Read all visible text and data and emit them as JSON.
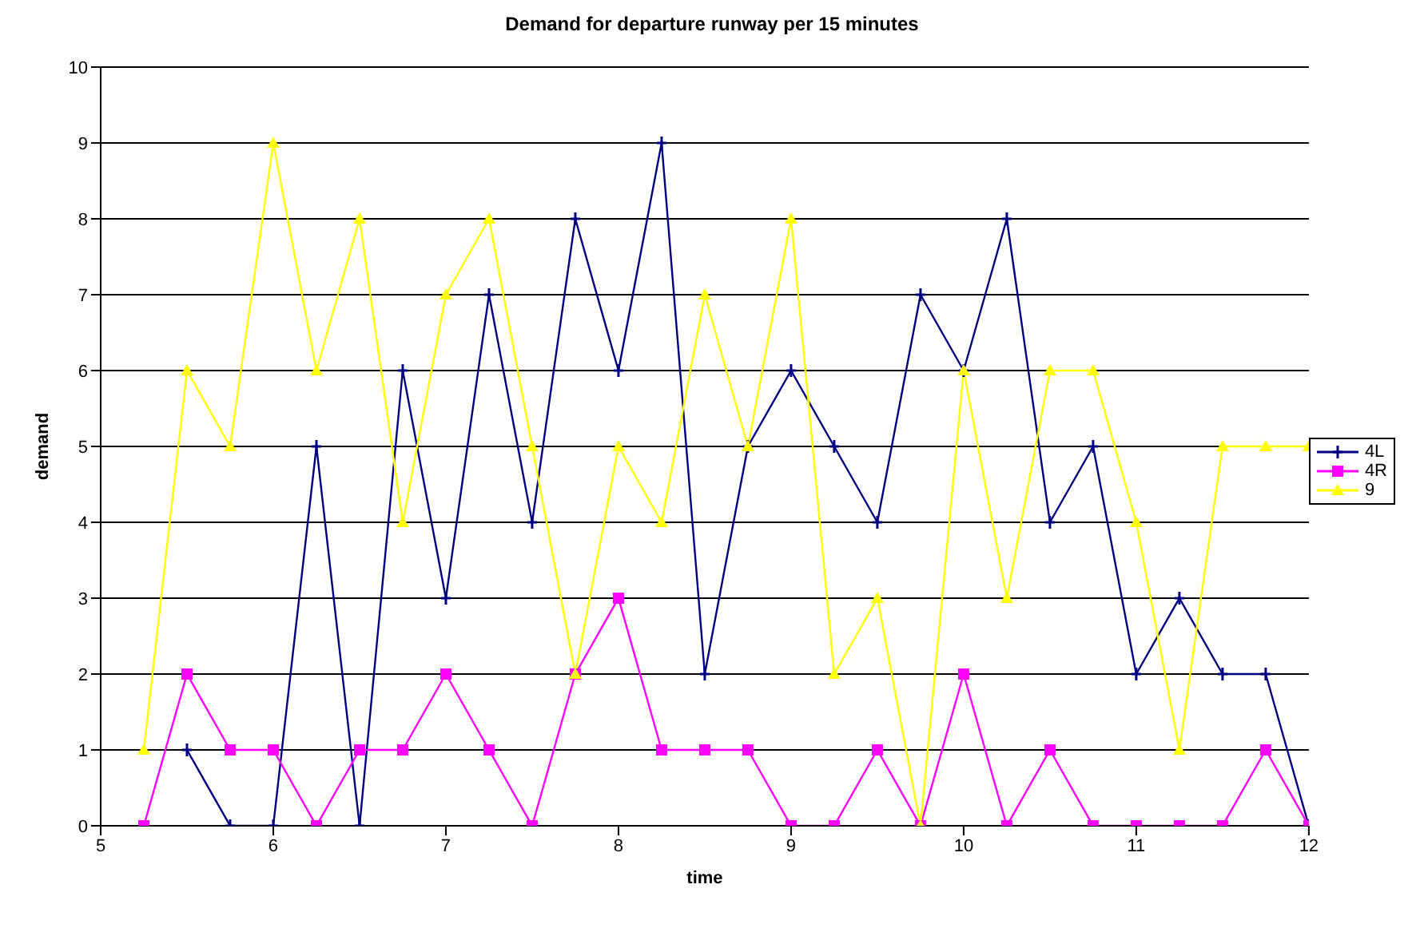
{
  "chart_data": {
    "type": "line",
    "title": "Demand for departure runway per 15 minutes",
    "xlabel": "time",
    "ylabel": "demand",
    "x": [
      5.25,
      5.5,
      5.75,
      6,
      6.25,
      6.5,
      6.75,
      7,
      7.25,
      7.5,
      7.75,
      8,
      8.25,
      8.5,
      8.75,
      9,
      9.25,
      9.5,
      9.75,
      10,
      10.25,
      10.5,
      10.75,
      11,
      11.25,
      11.5,
      11.75,
      12
    ],
    "series": [
      {
        "name": "4L",
        "color": "#000080",
        "marker": "cross",
        "values": [
          null,
          1,
          0,
          0,
          5,
          0,
          6,
          3,
          7,
          4,
          8,
          6,
          9,
          2,
          5,
          6,
          5,
          4,
          7,
          6,
          8,
          4,
          5,
          2,
          3,
          2,
          2,
          0
        ]
      },
      {
        "name": "4R",
        "color": "#ff00ff",
        "marker": "square",
        "values": [
          0,
          2,
          1,
          1,
          0,
          1,
          1,
          2,
          1,
          0,
          2,
          3,
          1,
          1,
          1,
          0,
          0,
          1,
          0,
          2,
          0,
          1,
          0,
          0,
          0,
          0,
          1,
          0
        ]
      },
      {
        "name": "9",
        "color": "#ffff00",
        "marker": "triangle",
        "values": [
          1,
          6,
          5,
          9,
          6,
          8,
          4,
          7,
          8,
          5,
          2,
          5,
          4,
          7,
          5,
          8,
          2,
          3,
          0,
          6,
          3,
          6,
          6,
          4,
          1,
          5,
          5,
          5
        ]
      }
    ],
    "xlim": [
      5,
      12
    ],
    "xticks": [
      5,
      6,
      7,
      8,
      9,
      10,
      11,
      12
    ],
    "ylim": [
      0,
      10
    ],
    "yticks": [
      0,
      1,
      2,
      3,
      4,
      5,
      6,
      7,
      8,
      9,
      10
    ],
    "grid": "y",
    "legend": "right"
  }
}
